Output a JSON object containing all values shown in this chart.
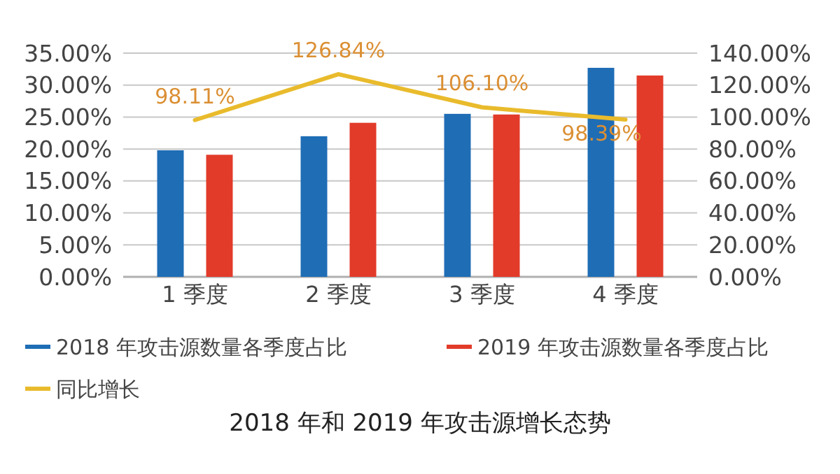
{
  "chart_data": {
    "type": "bar",
    "title": "2018 年和 2019 年攻击源增长态势",
    "categories": [
      "1 季度",
      "2 季度",
      "3 季度",
      "4 季度"
    ],
    "series": [
      {
        "name": "2018 年攻击源数量各季度占比",
        "color": "#1f6db5",
        "values": [
          19.8,
          22.0,
          25.5,
          32.7
        ]
      },
      {
        "name": "2019 年攻击源数量各季度占比",
        "color": "#e23b2a",
        "values": [
          19.1,
          24.1,
          25.4,
          31.5
        ]
      },
      {
        "name": "同比增长",
        "type": "line",
        "axis": "y2",
        "color": "#e9bb2c",
        "values": [
          98.11,
          126.84,
          106.1,
          98.39
        ],
        "value_labels": [
          "98.11%",
          "126.84%",
          "106.10%",
          "98.39%"
        ]
      }
    ],
    "ylim": [
      0,
      35
    ],
    "yticks": [
      {
        "value": 0,
        "label": "0.00%"
      },
      {
        "value": 5,
        "label": "5.00%"
      },
      {
        "value": 10,
        "label": "10.00%"
      },
      {
        "value": 15,
        "label": "15.00%"
      },
      {
        "value": 20,
        "label": "20.00%"
      },
      {
        "value": 25,
        "label": "25.00%"
      },
      {
        "value": 30,
        "label": "30.00%"
      },
      {
        "value": 35,
        "label": "35.00%"
      }
    ],
    "y2lim": [
      0,
      140
    ],
    "y2ticks": [
      {
        "value": 0,
        "label": "0.00%"
      },
      {
        "value": 20,
        "label": "20.00%"
      },
      {
        "value": 40,
        "label": "40.00%"
      },
      {
        "value": 60,
        "label": "60.00%"
      },
      {
        "value": 80,
        "label": "80.00%"
      },
      {
        "value": 100,
        "label": "100.00%"
      },
      {
        "value": 120,
        "label": "120.00%"
      },
      {
        "value": 140,
        "label": "140.00%"
      }
    ],
    "grid": "y",
    "legend": "bottom",
    "marker": "none"
  }
}
